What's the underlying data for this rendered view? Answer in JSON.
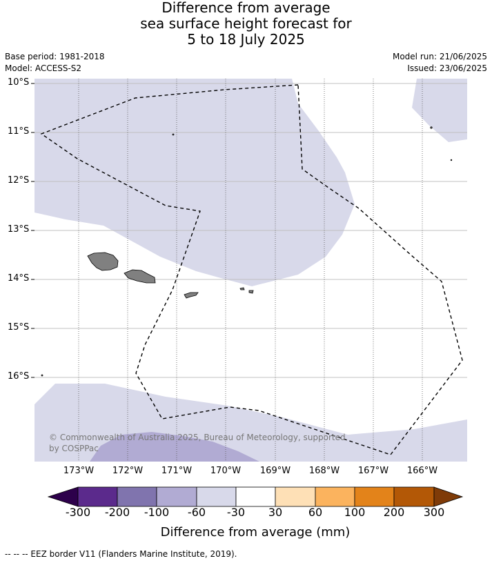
{
  "title": {
    "line1": "Difference from average",
    "line2": "sea surface height forecast for",
    "line3": "5 to 18 July 2025"
  },
  "meta": {
    "base_period": "Base period: 1981-2018",
    "model": "Model: ACCESS-S2",
    "model_run": "Model run: 21/06/2025",
    "issued": "Issued: 23/06/2025"
  },
  "map": {
    "latitude_labels": [
      "10°S",
      "11°S",
      "12°S",
      "13°S",
      "14°S",
      "15°S",
      "16°S"
    ],
    "longitude_labels": [
      "173°W",
      "172°W",
      "171°W",
      "170°W",
      "169°W",
      "168°W",
      "167°W",
      "166°W"
    ],
    "copyright": "© Commonwealth of Australia 2025, Bureau of Meteorology, supported by COSPPac",
    "colors": {
      "land": "#808080",
      "anomaly_minus60_to_minus30": "#d8d9ea",
      "anomaly_minus100_to_minus60": "#b1abd3"
    }
  },
  "colorbar": {
    "ticks": [
      "-300",
      "-200",
      "-100",
      "-60",
      "-30",
      "30",
      "60",
      "100",
      "200",
      "300"
    ],
    "colors": [
      "#2d004b",
      "#5b2a8c",
      "#8074ae",
      "#b1abd3",
      "#d8d9ea",
      "#ffffff",
      "#fee0b6",
      "#fbb35e",
      "#e3831a",
      "#b35806",
      "#7f3b08"
    ],
    "label": "Difference from average (mm)"
  },
  "footnote": "--  --  -- EEZ border V11 (Flanders Marine Institute, 2019)."
}
